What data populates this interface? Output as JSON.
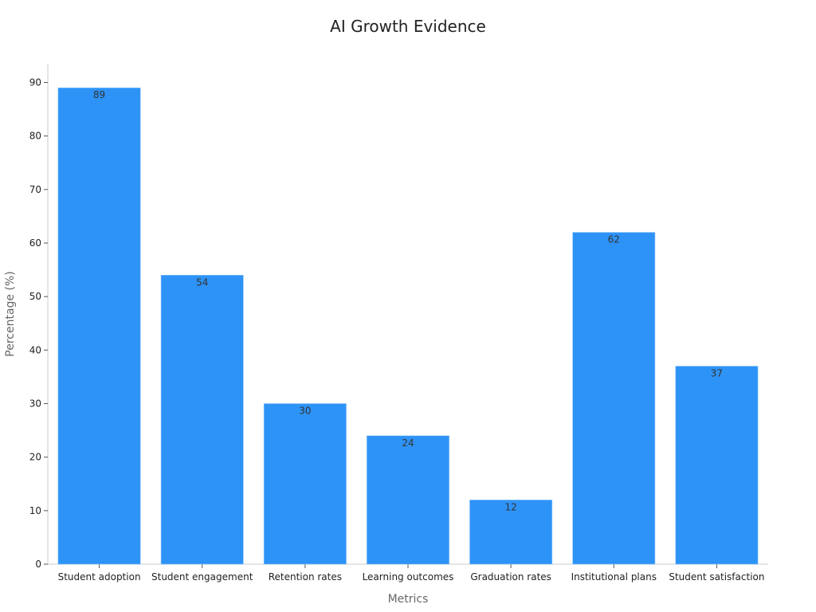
{
  "chart_data": {
    "type": "bar",
    "title": "AI Growth Evidence",
    "xlabel": "Metrics",
    "ylabel": "Percentage (%)",
    "categories": [
      "Student adoption",
      "Student engagement",
      "Retention rates",
      "Learning outcomes",
      "Graduation rates",
      "Institutional plans",
      "Student satisfaction"
    ],
    "values": [
      89,
      54,
      30,
      24,
      12,
      62,
      37
    ],
    "ylim": [
      0,
      93.5
    ],
    "yticks": [
      0,
      10,
      20,
      30,
      40,
      50,
      60,
      70,
      80,
      90
    ],
    "bar_color": "#2e93f7",
    "grid": false,
    "data_labels": true
  }
}
